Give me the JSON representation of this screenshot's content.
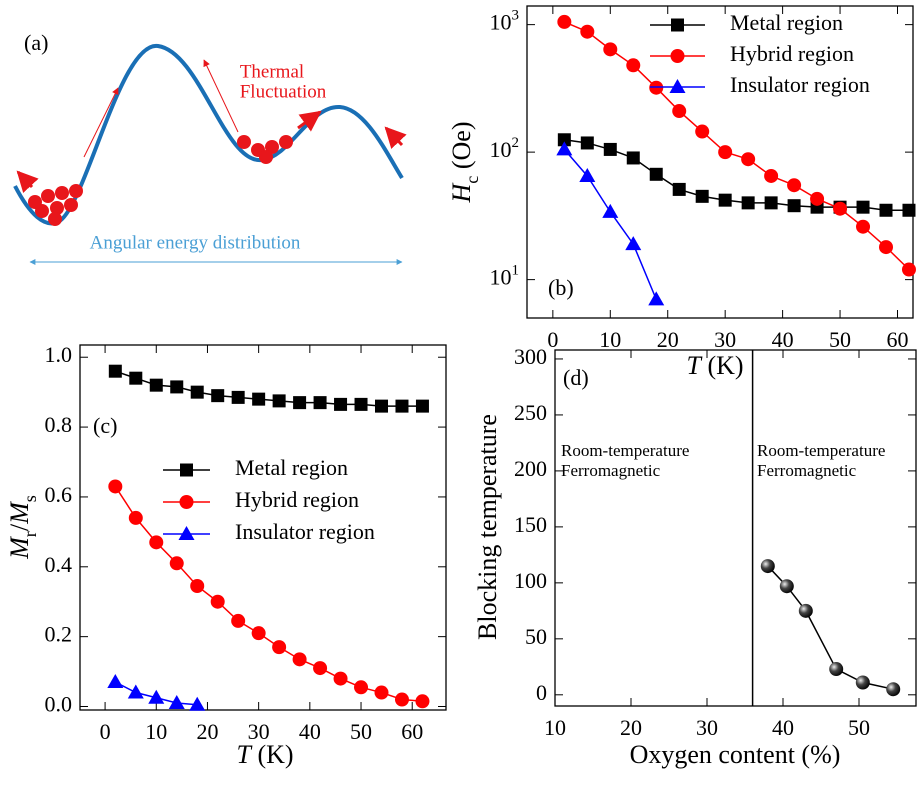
{
  "diagram": {
    "label": "(a)",
    "thermal_label": [
      "Thermal",
      "Fluctuation"
    ],
    "axis_label": "Angular energy distribution"
  },
  "chart_data": [
    {
      "type": "line",
      "label": "(b)",
      "log_y": true,
      "xlabel": [
        {
          "text": "T",
          "style": "italic"
        },
        {
          "text": " (K)",
          "style": "plain"
        }
      ],
      "ylabel": [
        {
          "text": "H",
          "style": "italic"
        },
        {
          "text": "c",
          "style": "sub"
        },
        {
          "text": " (Oe)",
          "style": "plain"
        }
      ],
      "xlim": [
        -4.5,
        62.7
      ],
      "ylim": [
        5,
        1400
      ],
      "xticks": [
        0,
        10,
        20,
        30,
        40,
        50,
        60
      ],
      "yticks": [
        {
          "value": 10,
          "label": "10",
          "exp": "1"
        },
        {
          "value": 100,
          "label": "10",
          "exp": "2"
        },
        {
          "value": 1000,
          "label": "10",
          "exp": "3"
        }
      ],
      "series": [
        {
          "name": "Metal region",
          "color": "#000000",
          "marker": "square",
          "x": [
            2,
            6,
            10,
            14,
            18,
            22,
            26,
            30,
            34,
            38,
            42,
            46,
            50,
            54,
            58,
            62
          ],
          "values": [
            125,
            118,
            105,
            90,
            67,
            51,
            45,
            42,
            40,
            40,
            38,
            37,
            37,
            37,
            35,
            35
          ]
        },
        {
          "name": "Hybrid region",
          "color": "#ff0000",
          "marker": "circle",
          "x": [
            2,
            6,
            10,
            14,
            18,
            22,
            26,
            30,
            34,
            38,
            42,
            46,
            50,
            54,
            58,
            62
          ],
          "values": [
            1050,
            880,
            640,
            480,
            320,
            210,
            145,
            100,
            88,
            65,
            55,
            43,
            36,
            26,
            18,
            12
          ]
        },
        {
          "name": "Insulator region",
          "color": "#0000ff",
          "marker": "triangle",
          "x": [
            2,
            6,
            10,
            14,
            18
          ],
          "values": [
            105,
            65,
            34,
            19,
            7
          ]
        }
      ]
    },
    {
      "type": "line",
      "label": "(c)",
      "log_y": false,
      "xlabel": [
        {
          "text": "T",
          "style": "italic"
        },
        {
          "text": " (K)",
          "style": "plain"
        }
      ],
      "ylabel": [
        {
          "text": "M",
          "style": "italic"
        },
        {
          "text": "r",
          "style": "sub"
        },
        {
          "text": "/",
          "style": "plain"
        },
        {
          "text": "M",
          "style": "italic"
        },
        {
          "text": "s",
          "style": "sub"
        }
      ],
      "xlim": [
        -4.9,
        66.6
      ],
      "ylim": [
        -0.01,
        1.035
      ],
      "xticks": [
        0,
        10,
        20,
        30,
        40,
        50,
        60
      ],
      "yticks": [
        {
          "value": 0,
          "label": "0.0"
        },
        {
          "value": 0.2,
          "label": "0.2"
        },
        {
          "value": 0.4,
          "label": "0.4"
        },
        {
          "value": 0.6,
          "label": "0.6"
        },
        {
          "value": 0.8,
          "label": "0.8"
        },
        {
          "value": 1,
          "label": "1.0"
        }
      ],
      "series": [
        {
          "name": "Metal region",
          "color": "#000000",
          "marker": "square",
          "x": [
            2,
            6,
            10,
            14,
            18,
            22,
            26,
            30,
            34,
            38,
            42,
            46,
            50,
            54,
            58,
            62
          ],
          "values": [
            0.96,
            0.94,
            0.92,
            0.915,
            0.9,
            0.89,
            0.885,
            0.88,
            0.875,
            0.87,
            0.87,
            0.865,
            0.865,
            0.86,
            0.86,
            0.86
          ]
        },
        {
          "name": "Hybrid region",
          "color": "#ff0000",
          "marker": "circle",
          "x": [
            2,
            6,
            10,
            14,
            18,
            22,
            26,
            30,
            34,
            38,
            42,
            46,
            50,
            54,
            58,
            62
          ],
          "values": [
            0.63,
            0.54,
            0.47,
            0.41,
            0.345,
            0.3,
            0.245,
            0.21,
            0.17,
            0.135,
            0.11,
            0.08,
            0.055,
            0.04,
            0.02,
            0.015
          ]
        },
        {
          "name": "Insulator region",
          "color": "#0000ff",
          "marker": "triangle",
          "x": [
            2,
            6,
            10,
            14,
            18
          ],
          "values": [
            0.07,
            0.04,
            0.025,
            0.01,
            0.005
          ]
        }
      ]
    },
    {
      "type": "line",
      "label": "(d)",
      "log_y": false,
      "xlabel": [
        {
          "text": "Oxygen content (%)",
          "style": "plain"
        }
      ],
      "ylabel": [
        {
          "text": "Blocking temperature",
          "style": "plain"
        }
      ],
      "xlim": [
        10,
        57.5
      ],
      "ylim": [
        -10,
        308
      ],
      "xticks": [
        10,
        20,
        30,
        40,
        50
      ],
      "yticks": [
        0,
        50,
        100,
        150,
        200,
        250,
        300
      ],
      "vline": 36,
      "annotations": [
        [
          "Room-temperature",
          "Ferromagnetic"
        ],
        [
          "Room-temperature",
          "Ferromagnetic"
        ]
      ],
      "series": [
        {
          "color": "#000000",
          "marker": "sphere",
          "x": [
            38,
            40.5,
            43,
            47,
            50.5,
            54.5
          ],
          "values": [
            115,
            97,
            75,
            23,
            11,
            5
          ]
        }
      ]
    }
  ]
}
